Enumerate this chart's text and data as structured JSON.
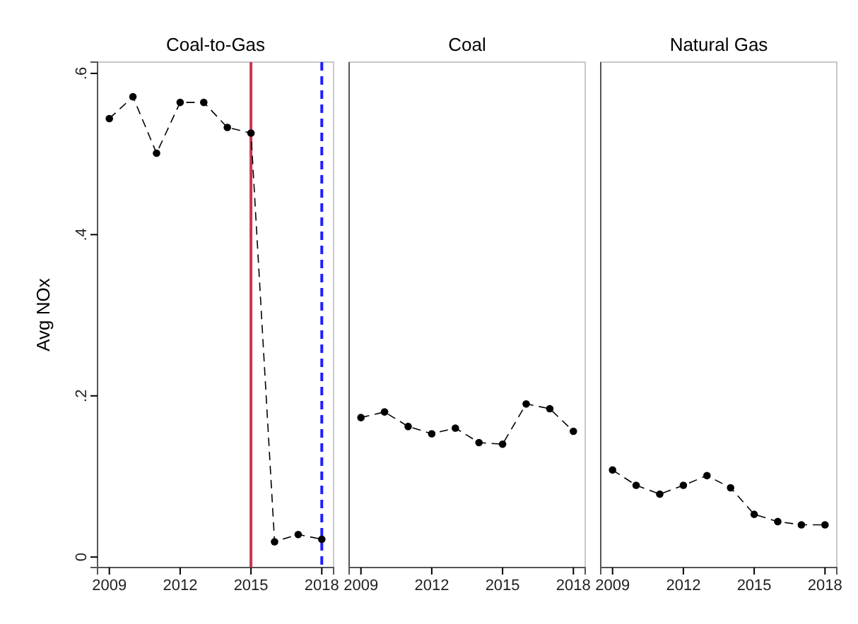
{
  "chart_data": [
    {
      "type": "line",
      "title": "Coal-to-Gas",
      "ylabel": "Avg NOx",
      "x": [
        2009,
        2010,
        2011,
        2012,
        2013,
        2014,
        2015,
        2016,
        2017,
        2018
      ],
      "series": [
        {
          "color": "#000000",
          "values": [
            0.544,
            0.571,
            0.501,
            0.564,
            0.564,
            0.533,
            0.526,
            0.019,
            0.028,
            0.022
          ]
        }
      ],
      "xlim": [
        2008.5,
        2018.5
      ],
      "xticks": [
        2009,
        2012,
        2015,
        2018
      ],
      "ylim": [
        -0.013,
        0.614
      ],
      "yticks": [
        0,
        {
          "value": 0.2,
          "label": ".2"
        },
        {
          "value": 0.4,
          "label": ".4"
        },
        {
          "value": 0.6,
          "label": ".6"
        }
      ],
      "marker": "circle",
      "line_style": "dashed",
      "grid": false,
      "ref_lines": [
        {
          "axis": "x",
          "value": 2015,
          "color": "#c8374f",
          "line_style": "solid"
        },
        {
          "axis": "x",
          "value": 2018,
          "color": "#1f1fff",
          "line_style": "dashed"
        }
      ]
    },
    {
      "type": "line",
      "title": "Coal",
      "x": [
        2009,
        2010,
        2011,
        2012,
        2013,
        2014,
        2015,
        2016,
        2017,
        2018
      ],
      "series": [
        {
          "color": "#000000",
          "values": [
            0.173,
            0.18,
            0.162,
            0.153,
            0.16,
            0.142,
            0.14,
            0.19,
            0.184,
            0.156
          ]
        }
      ],
      "xlim": [
        2008.5,
        2018.5
      ],
      "xticks": [
        2009,
        2012,
        2015,
        2018
      ],
      "ylim": [
        -0.013,
        0.614
      ],
      "tick_labels": "x",
      "marker": "circle",
      "line_style": "dashed",
      "grid": false
    },
    {
      "type": "line",
      "title": "Natural Gas",
      "x": [
        2009,
        2010,
        2011,
        2012,
        2013,
        2014,
        2015,
        2016,
        2017,
        2018
      ],
      "series": [
        {
          "color": "#000000",
          "values": [
            0.108,
            0.089,
            0.078,
            0.089,
            0.101,
            0.086,
            0.053,
            0.044,
            0.04,
            0.04
          ]
        }
      ],
      "xlim": [
        2008.5,
        2018.5
      ],
      "xticks": [
        2009,
        2012,
        2015,
        2018
      ],
      "ylim": [
        -0.013,
        0.614
      ],
      "tick_labels": "x",
      "marker": "circle",
      "line_style": "dashed",
      "grid": false
    }
  ]
}
